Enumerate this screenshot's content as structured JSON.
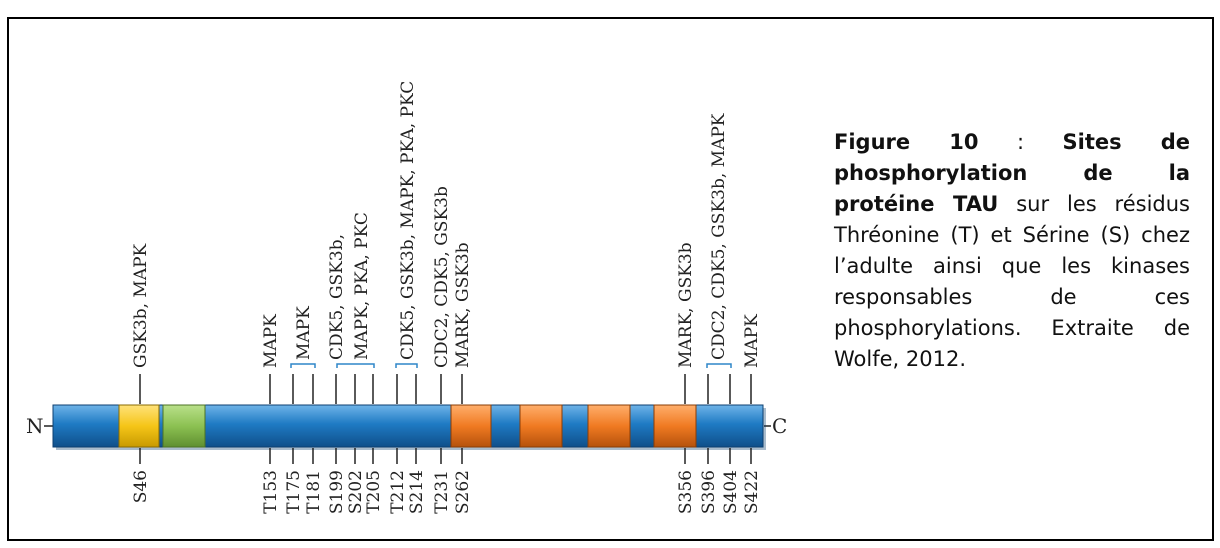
{
  "figure": {
    "n_terminal": "N",
    "c_terminal": "C",
    "bottom_sites": [
      "S46",
      "T153",
      "T175",
      "T181",
      "S199",
      "S202",
      "T205",
      "T212",
      "S214",
      "T231",
      "S262",
      "S356",
      "S396",
      "S404",
      "S422"
    ],
    "top_labels": [
      "GSK3b, MAPK",
      "MAPK",
      "MAPK",
      "CDK5, GSK3b,",
      "MAPK, PKA, PKC",
      "CDK5, GSK3b, MAPK, PKA, PKC",
      "CDC2, CDK5, GSK3b",
      "MARK, GSK3b",
      "MARK, GSK3b",
      "CDC2, CDK5, GSK3b, MAPK",
      "MAPK"
    ],
    "colors": {
      "backbone": "#1f7bc4",
      "yellow_domain": "#f5c518",
      "green_domain": "#8cc152",
      "orange_domain": "#f07a22",
      "bracket": "#2e86c8"
    }
  },
  "caption": {
    "figure_number": "Figure 10",
    "separator": " : ",
    "bold_title": "Sites de phosphorylation de la protéine TAU",
    "body": " sur les résidus Thréonine (T) et Sérine (S) chez l’adulte ainsi que les kinases responsables de ces phosphorylations. Extraite de Wolfe, 2012."
  }
}
